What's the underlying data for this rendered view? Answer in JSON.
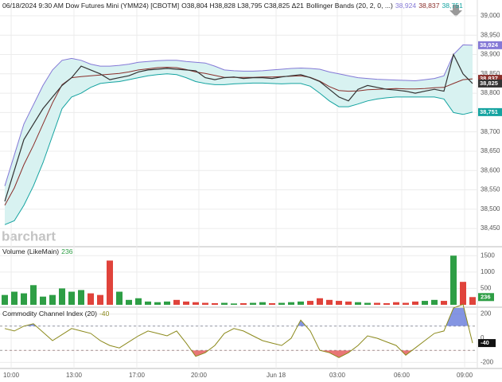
{
  "chart_data": [
    {
      "type": "line",
      "title": "06/18/2024 9:30 AM Dow Futures Mini (YMM24) [CBOTM]",
      "subtitle": "O38,804 H38,828 L38,795 C38,825 Δ21",
      "indicator": "Bollinger Bands (20, 2, 0, ...)",
      "watermark": "barchart",
      "xlim": [
        -0.5,
        49.5
      ],
      "ylim": [
        38407,
        39041
      ],
      "yticks": [
        {
          "value": 38450,
          "label": "38,450"
        },
        {
          "value": 38500,
          "label": "38,500"
        },
        {
          "value": 38550,
          "label": "38,550"
        },
        {
          "value": 38600,
          "label": "38,600"
        },
        {
          "value": 38650,
          "label": "38,650"
        },
        {
          "value": 38700,
          "label": "38,700"
        },
        {
          "value": 38750,
          "label": "38,750"
        },
        {
          "value": 38800,
          "label": "38,800"
        },
        {
          "value": 38850,
          "label": "38,850"
        },
        {
          "value": 38900,
          "label": "38,900"
        },
        {
          "value": 38950,
          "label": "38,950"
        },
        {
          "value": 39000,
          "label": "39,000"
        }
      ],
      "grid": true,
      "band_fill": "#d8f2f1",
      "series": [
        {
          "color": "#8478d6",
          "last_value_label": "38,924",
          "values": [
            38560,
            38640,
            38720,
            38770,
            38820,
            38860,
            38885,
            38890,
            38885,
            38875,
            38870,
            38870,
            38872,
            38875,
            38880,
            38882,
            38884,
            38885,
            38885,
            38882,
            38880,
            38878,
            38870,
            38860,
            38858,
            38857,
            38857,
            38858,
            38860,
            38862,
            38864,
            38865,
            38864,
            38862,
            38855,
            38850,
            38845,
            38840,
            38838,
            38836,
            38835,
            38834,
            38833,
            38832,
            38835,
            38838,
            38845,
            38900,
            38925,
            38924
          ]
        },
        {
          "color": "#8a2e2a",
          "last_value_label": "38,837",
          "values": [
            38510,
            38555,
            38615,
            38665,
            38720,
            38775,
            38822,
            38840,
            38843,
            38845,
            38847,
            38849,
            38851,
            38855,
            38860,
            38863,
            38866,
            38867,
            38866,
            38861,
            38855,
            38851,
            38846,
            38841,
            38841,
            38841,
            38841,
            38842,
            38842,
            38843,
            38844,
            38845,
            38841,
            38831,
            38817,
            38807,
            38805,
            38806,
            38809,
            38810,
            38811,
            38812,
            38811,
            38811,
            38812,
            38814,
            38815,
            38825,
            38835,
            38837
          ]
        },
        {
          "color": "#14a3a0",
          "last_value_label": "38,751",
          "values": [
            38460,
            38470,
            38510,
            38560,
            38620,
            38690,
            38760,
            38790,
            38800,
            38815,
            38825,
            38828,
            38830,
            38835,
            38840,
            38845,
            38848,
            38850,
            38848,
            38840,
            38830,
            38825,
            38822,
            38822,
            38824,
            38825,
            38826,
            38826,
            38825,
            38824,
            38825,
            38825,
            38818,
            38800,
            38780,
            38765,
            38765,
            38772,
            38780,
            38785,
            38788,
            38790,
            38790,
            38790,
            38790,
            38790,
            38785,
            38750,
            38745,
            38751
          ]
        },
        {
          "color": "#333333",
          "last_value_label": "38,825",
          "values": [
            38520,
            38600,
            38680,
            38720,
            38760,
            38790,
            38820,
            38840,
            38870,
            38860,
            38850,
            38835,
            38840,
            38845,
            38855,
            38860,
            38862,
            38864,
            38862,
            38860,
            38858,
            38840,
            38835,
            38840,
            38842,
            38838,
            38840,
            38840,
            38838,
            38842,
            38845,
            38848,
            38840,
            38830,
            38810,
            38790,
            38780,
            38810,
            38820,
            38815,
            38810,
            38808,
            38805,
            38800,
            38805,
            38810,
            38805,
            38900,
            38850,
            38825
          ]
        }
      ]
    },
    {
      "type": "bar",
      "title": "Volume (LikeMain)",
      "xlim": [
        -0.5,
        49.5
      ],
      "ylim": [
        0,
        1700
      ],
      "yticks": [
        500,
        1000,
        1500
      ],
      "grid": true,
      "up_color": "#2e9e45",
      "down_color": "#e0433b",
      "values": [
        300,
        400,
        350,
        600,
        250,
        300,
        500,
        400,
        450,
        350,
        300,
        1350,
        400,
        150,
        200,
        100,
        80,
        100,
        150,
        100,
        80,
        60,
        50,
        60,
        40,
        50,
        60,
        80,
        50,
        60,
        80,
        100,
        120,
        200,
        150,
        120,
        100,
        80,
        60,
        60,
        50,
        80,
        60,
        100,
        120,
        150,
        120,
        1500,
        700,
        236
      ]
    },
    {
      "type": "line",
      "title": "Commodity Channel Index (20)",
      "xlim": [
        -0.5,
        49.5
      ],
      "ylim": [
        -250,
        250
      ],
      "yticks": [
        200,
        0,
        -200
      ],
      "grid": true,
      "overbought": 100,
      "oversold": -100,
      "color": "#8c8a1c",
      "over_color": "#5b72d8",
      "under_color": "#e04848",
      "values": [
        80,
        60,
        100,
        120,
        50,
        -20,
        30,
        80,
        60,
        40,
        -20,
        -60,
        -80,
        -30,
        20,
        60,
        40,
        20,
        60,
        -40,
        -150,
        -120,
        -60,
        40,
        80,
        60,
        20,
        -20,
        -40,
        -60,
        0,
        150,
        60,
        -100,
        -120,
        -160,
        -120,
        -60,
        20,
        0,
        -30,
        -60,
        -140,
        -80,
        -20,
        40,
        60,
        250,
        280,
        -40
      ],
      "xticks": [
        {
          "value": 0.67,
          "label": "10:00"
        },
        {
          "value": 7.25,
          "label": "13:00"
        },
        {
          "value": 13.83,
          "label": "17:00"
        },
        {
          "value": 20.33,
          "label": "20:00"
        },
        {
          "value": 28.42,
          "label": "Jun 18"
        },
        {
          "value": 34.83,
          "label": "03:00"
        },
        {
          "value": 41.58,
          "label": "06:00"
        },
        {
          "value": 48.17,
          "label": "09:00"
        }
      ]
    }
  ]
}
